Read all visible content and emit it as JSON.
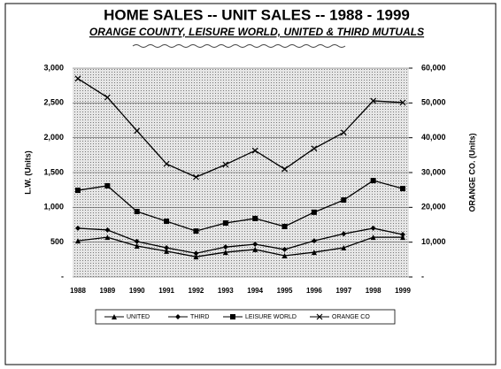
{
  "chart_data": {
    "type": "line",
    "title": "HOME SALES -- UNIT SALES  --  1988 - 1999",
    "subtitle": "ORANGE COUNTY, LEISURE WORLD, UNITED & THIRD MUTUALS",
    "ylabel": "L.W. (Units)",
    "y2label": "ORANGE CO. (Units)",
    "categories": [
      "1988",
      "1989",
      "1990",
      "1991",
      "1992",
      "1993",
      "1994",
      "1995",
      "1996",
      "1997",
      "1998",
      "1999"
    ],
    "ylim": [
      0,
      3000
    ],
    "yticks": [
      {
        "value": 0,
        "label": "-"
      },
      500,
      {
        "value": 1000,
        "label": "1,000"
      },
      {
        "value": 1500,
        "label": "1,500"
      },
      {
        "value": 2000,
        "label": "2,000"
      },
      {
        "value": 2500,
        "label": "2,500"
      },
      {
        "value": 3000,
        "label": "3,000"
      }
    ],
    "y2lim": [
      0,
      60000
    ],
    "y2ticks": [
      {
        "value": 0,
        "label": "-"
      },
      {
        "value": 10000,
        "label": "10,000"
      },
      {
        "value": 20000,
        "label": "20,000"
      },
      {
        "value": 30000,
        "label": "30,000"
      },
      {
        "value": 40000,
        "label": "40,000"
      },
      {
        "value": 50000,
        "label": "50,000"
      },
      {
        "value": 60000,
        "label": "60,000"
      }
    ],
    "grid": true,
    "legend": "bottom",
    "series": [
      {
        "name": "UNITED",
        "color": "#000000",
        "marker": "triangle",
        "values": [
          520,
          570,
          445,
          370,
          290,
          355,
          395,
          305,
          355,
          420,
          570,
          570
        ]
      },
      {
        "name": "THIRD",
        "color": "#000000",
        "marker": "diamond",
        "values": [
          700,
          675,
          510,
          420,
          340,
          430,
          470,
          395,
          520,
          620,
          700,
          610
        ]
      },
      {
        "name": "LEISURE WORLD",
        "color": "#000000",
        "marker": "square",
        "values": [
          1245,
          1310,
          940,
          800,
          660,
          775,
          840,
          725,
          930,
          1105,
          1385,
          1270
        ]
      },
      {
        "name": "ORANGE CO",
        "color": "#000000",
        "marker": "cross",
        "axis": "y2",
        "values": [
          57000,
          51600,
          42000,
          32500,
          28700,
          32300,
          36300,
          31000,
          36900,
          41500,
          50600,
          50100
        ]
      }
    ]
  }
}
